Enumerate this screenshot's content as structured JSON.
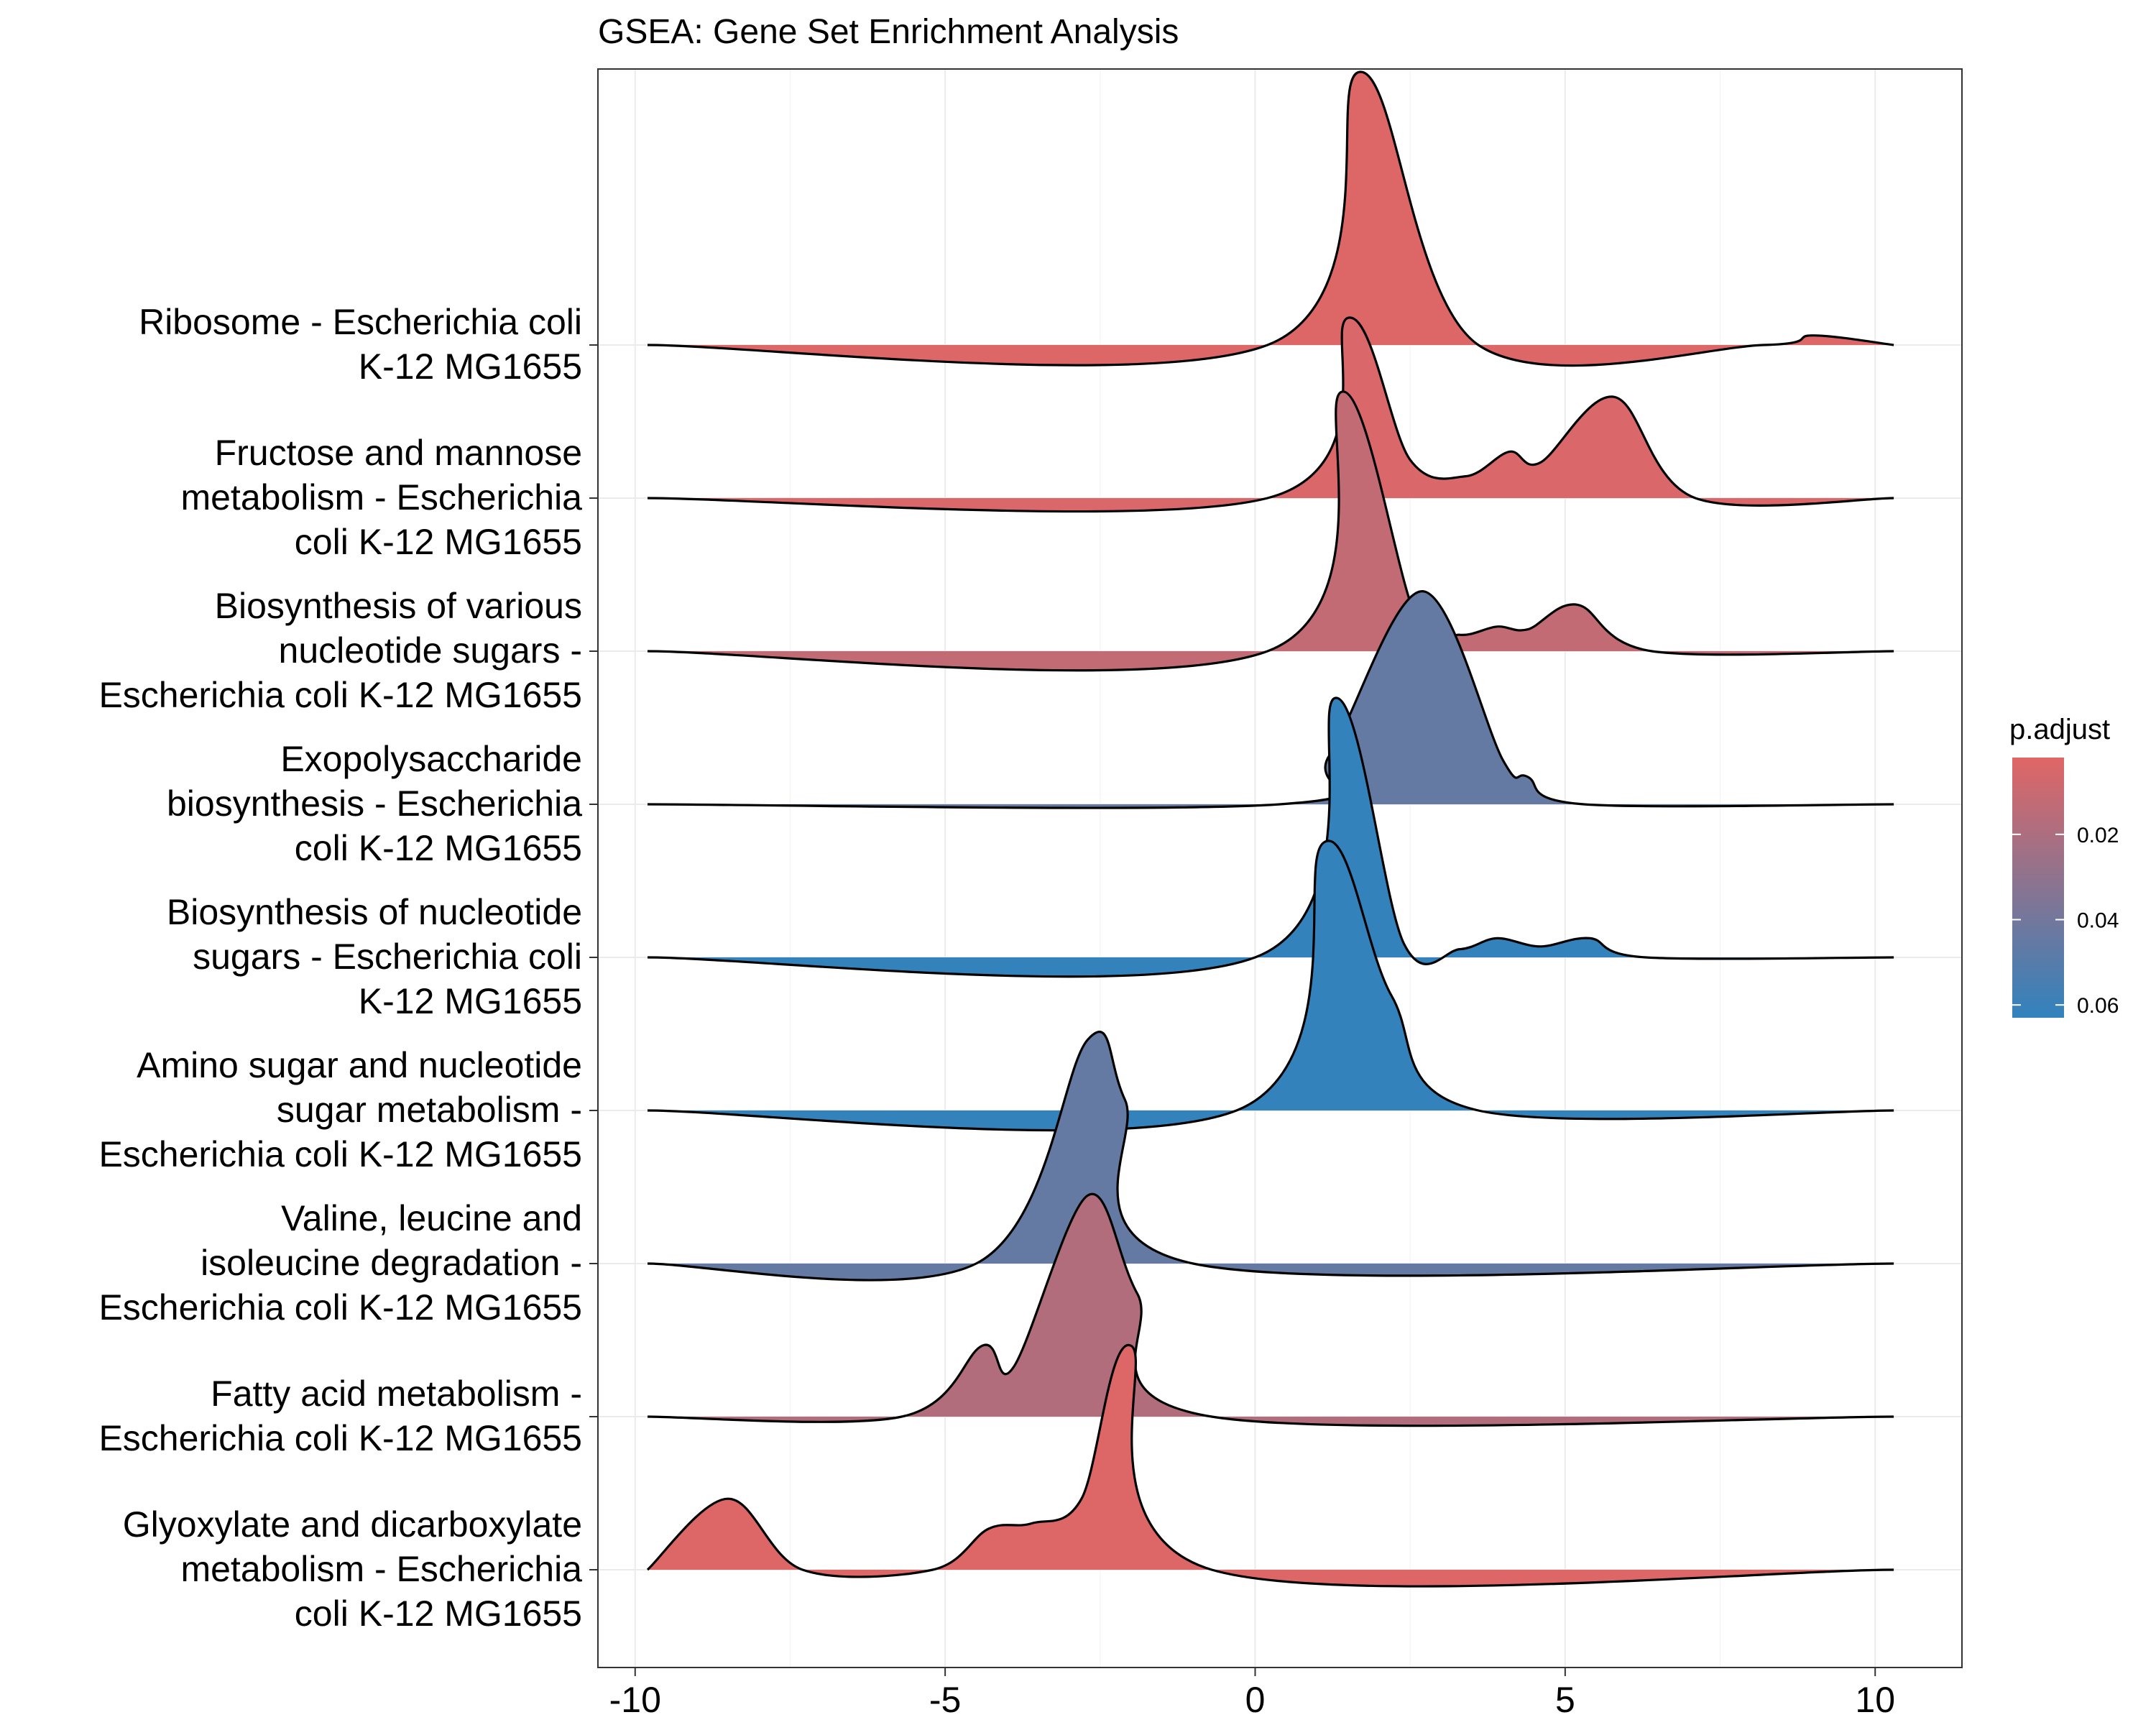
{
  "chart_data": {
    "type": "ridgeline",
    "title": "GSEA: Gene Set Enrichment Analysis",
    "xlabel": "",
    "ylabel": "",
    "xlim": [
      -10.6,
      11.4
    ],
    "x_ticks": [
      -10,
      -5,
      0,
      5,
      10
    ],
    "x_tick_labels": [
      "-10",
      "-5",
      "0",
      "5",
      "10"
    ],
    "grid": true,
    "legend": {
      "title": "p.adjust",
      "position": "right",
      "ticks": [
        0.02,
        0.04,
        0.06
      ],
      "tick_labels": [
        "0.02",
        "0.04",
        "0.06"
      ],
      "range": [
        0.002,
        0.063
      ],
      "colors": [
        "#e06666",
        "#3182bd"
      ]
    },
    "colors": {
      "high": "#e06666",
      "low": "#3182bd"
    },
    "series": [
      {
        "label_lines": [
          "Ribosome - Escherichia coli",
          "K-12 MG1655"
        ],
        "p_adjust": 0.003,
        "density": [
          [
            -9.8,
            0
          ],
          [
            0.2,
            0
          ],
          [
            1.7,
            1.0
          ],
          [
            3.6,
            0
          ],
          [
            8.2,
            0
          ],
          [
            9.0,
            0.035
          ],
          [
            10.3,
            0
          ]
        ]
      },
      {
        "label_lines": [
          "Fructose and mannose",
          "metabolism - Escherichia",
          "coli K-12 MG1655"
        ],
        "p_adjust": 0.004,
        "density": [
          [
            -9.8,
            0
          ],
          [
            0.2,
            0
          ],
          [
            1.5,
            0.66
          ],
          [
            2.5,
            0.14
          ],
          [
            3.4,
            0.08
          ],
          [
            4.1,
            0.17
          ],
          [
            4.6,
            0.13
          ],
          [
            5.8,
            0.37
          ],
          [
            7.1,
            0
          ],
          [
            10.3,
            0
          ]
        ]
      },
      {
        "label_lines": [
          "Biosynthesis of various",
          "nucleotide sugars -",
          "Escherichia coli K-12 MG1655"
        ],
        "p_adjust": 0.012,
        "density": [
          [
            -9.8,
            0
          ],
          [
            0.2,
            0
          ],
          [
            1.4,
            0.95
          ],
          [
            2.6,
            0.12
          ],
          [
            3.3,
            0.06
          ],
          [
            3.9,
            0.09
          ],
          [
            4.4,
            0.08
          ],
          [
            5.2,
            0.17
          ],
          [
            6.4,
            0
          ],
          [
            10.3,
            0
          ]
        ]
      },
      {
        "label_lines": [
          "Exopolysaccharide",
          "biosynthesis - Escherichia",
          "coli K-12 MG1655"
        ],
        "p_adjust": 0.045,
        "density": [
          [
            -9.8,
            0
          ],
          [
            0.4,
            0
          ],
          [
            1.2,
            0.18
          ],
          [
            2.7,
            0.78
          ],
          [
            4.0,
            0.16
          ],
          [
            4.4,
            0.1
          ],
          [
            5.3,
            0
          ],
          [
            10.3,
            0
          ]
        ]
      },
      {
        "label_lines": [
          "Biosynthesis of nucleotide",
          "sugars - Escherichia coli",
          "K-12 MG1655"
        ],
        "p_adjust": 0.062,
        "density": [
          [
            -9.8,
            0
          ],
          [
            0.0,
            0
          ],
          [
            1.3,
            0.95
          ],
          [
            2.4,
            0.05
          ],
          [
            3.3,
            0.03
          ],
          [
            3.9,
            0.07
          ],
          [
            4.6,
            0.04
          ],
          [
            5.4,
            0.07
          ],
          [
            6.3,
            0
          ],
          [
            10.3,
            0
          ]
        ]
      },
      {
        "label_lines": [
          "Amino sugar and nucleotide",
          "sugar metabolism -",
          "Escherichia coli K-12 MG1655"
        ],
        "p_adjust": 0.062,
        "density": [
          [
            -9.8,
            0
          ],
          [
            -0.3,
            0
          ],
          [
            1.1,
            0.98
          ],
          [
            2.2,
            0.42
          ],
          [
            3.6,
            0
          ],
          [
            10.3,
            0
          ]
        ]
      },
      {
        "label_lines": [
          "Valine, leucine and",
          "isoleucine degradation -",
          "Escherichia coli K-12 MG1655"
        ],
        "p_adjust": 0.045,
        "density": [
          [
            -9.8,
            0
          ],
          [
            -4.5,
            0
          ],
          [
            -2.7,
            0.82
          ],
          [
            -2.1,
            0.6
          ],
          [
            -1.0,
            0
          ],
          [
            10.3,
            0
          ]
        ]
      },
      {
        "label_lines": [
          "Fatty acid metabolism -",
          "Escherichia coli K-12 MG1655"
        ],
        "p_adjust": 0.018,
        "density": [
          [
            -9.8,
            0
          ],
          [
            -5.7,
            0
          ],
          [
            -4.4,
            0.26
          ],
          [
            -3.9,
            0.18
          ],
          [
            -2.7,
            0.81
          ],
          [
            -1.9,
            0.45
          ],
          [
            -0.7,
            0
          ],
          [
            10.3,
            0
          ]
        ]
      },
      {
        "label_lines": [
          "Glyoxylate and dicarboxylate",
          "metabolism - Escherichia",
          "coli K-12 MG1655"
        ],
        "p_adjust": 0.003,
        "density": [
          [
            -9.8,
            0
          ],
          [
            -8.5,
            0.26
          ],
          [
            -7.3,
            0
          ],
          [
            -5.2,
            0
          ],
          [
            -4.3,
            0.15
          ],
          [
            -3.6,
            0.17
          ],
          [
            -2.8,
            0.26
          ],
          [
            -2.0,
            0.82
          ],
          [
            -0.7,
            0
          ],
          [
            10.3,
            0
          ]
        ]
      }
    ]
  }
}
